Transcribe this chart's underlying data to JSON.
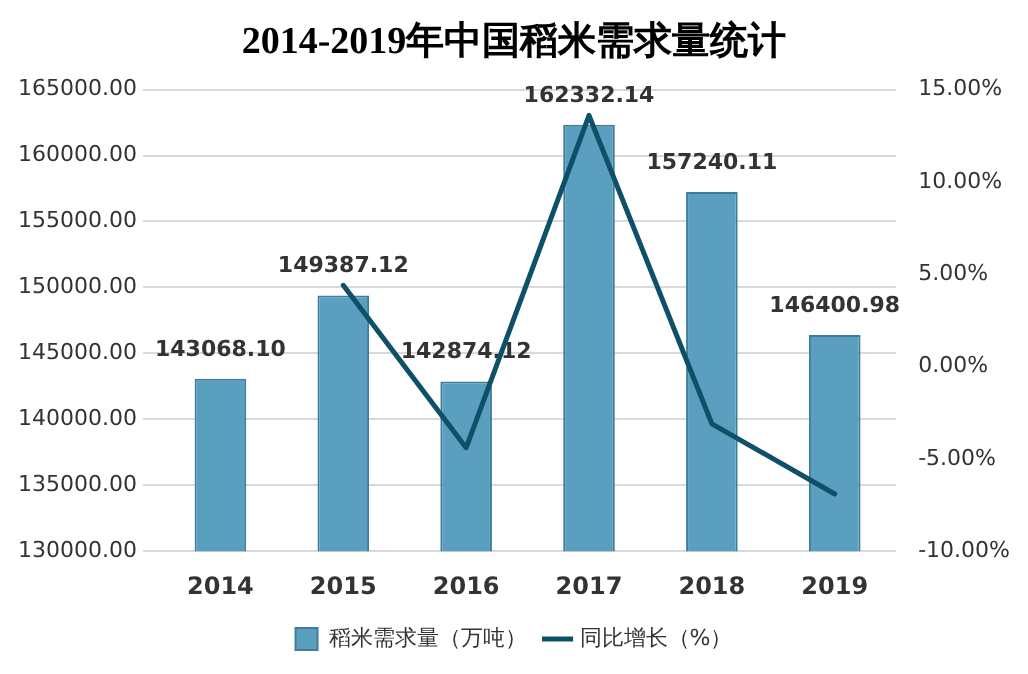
{
  "chart_data": {
    "type": "bar",
    "title": "2014-2019年中国稻米需求量统计",
    "categories": [
      "2014",
      "2015",
      "2016",
      "2017",
      "2018",
      "2019"
    ],
    "series": [
      {
        "name": "稻米需求量（万吨）",
        "color": "#5b9fc0",
        "values": [
          143068.1,
          149387.12,
          142874.12,
          162332.14,
          157240.11,
          146400.98
        ],
        "value_labels": [
          "143068.10",
          "149387.12",
          "142874.12",
          "162332.14",
          "157240.11",
          "146400.98"
        ]
      },
      {
        "name": "同比增长（%）",
        "type": "line",
        "axis": "y2",
        "color": "#0e5068",
        "values": [
          null,
          4.4,
          -4.4,
          13.6,
          -3.1,
          -6.9
        ]
      }
    ],
    "ylim": [
      130000,
      165000
    ],
    "yticks": [
      {
        "value": 130000,
        "label": "130000.00"
      },
      {
        "value": 135000,
        "label": "135000.00"
      },
      {
        "value": 140000,
        "label": "140000.00"
      },
      {
        "value": 145000,
        "label": "145000.00"
      },
      {
        "value": 150000,
        "label": "150000.00"
      },
      {
        "value": 155000,
        "label": "155000.00"
      },
      {
        "value": 160000,
        "label": "160000.00"
      },
      {
        "value": 165000,
        "label": "165000.00"
      }
    ],
    "y2lim": [
      -10,
      15
    ],
    "y2ticks": [
      {
        "value": -10,
        "label": "-10.00%"
      },
      {
        "value": -5,
        "label": "-5.00%"
      },
      {
        "value": 0,
        "label": "0.00%"
      },
      {
        "value": 5,
        "label": "5.00%"
      },
      {
        "value": 10,
        "label": "10.00%"
      },
      {
        "value": 15,
        "label": "15.00%"
      }
    ],
    "grid": "y",
    "legend": "bottom",
    "marker": "none",
    "line_style": "solid"
  }
}
